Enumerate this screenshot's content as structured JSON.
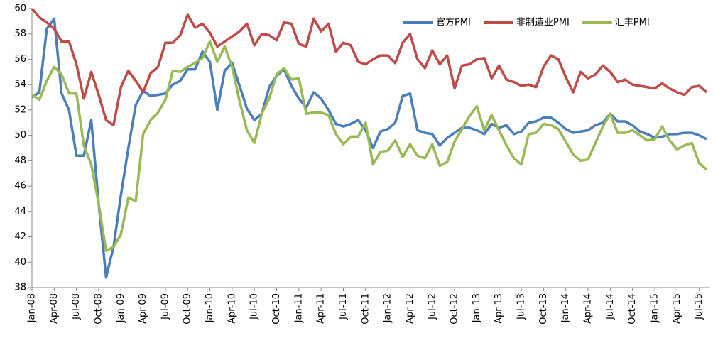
{
  "chart_data": {
    "type": "line",
    "categories": [
      "Jan-08",
      null,
      null,
      "Apr-08",
      null,
      null,
      "Jul-08",
      null,
      null,
      "Oct-08",
      null,
      null,
      "Jan-09",
      null,
      null,
      "Apr-09",
      null,
      null,
      "Jul-09",
      null,
      null,
      "Oct-09",
      null,
      null,
      "Jan-10",
      null,
      null,
      "Apr-10",
      null,
      null,
      "Jul-10",
      null,
      null,
      "Oct-10",
      null,
      null,
      "Jan-11",
      null,
      null,
      "Apr-11",
      null,
      null,
      "Jul-11",
      null,
      null,
      "Oct-11",
      null,
      null,
      "Jan-12",
      null,
      null,
      "Apr-12",
      null,
      null,
      "Jul-12",
      null,
      null,
      "Oct-12",
      null,
      null,
      "Jan-13",
      null,
      null,
      "Apr-13",
      null,
      null,
      "Jul-13",
      null,
      null,
      "Oct-13",
      null,
      null,
      "Jan-14",
      null,
      null,
      "Apr-14",
      null,
      null,
      "Jul-14",
      null,
      null,
      "Oct-14",
      null,
      null,
      "Jan-15",
      null,
      null,
      "Apr-15",
      null,
      null,
      "Jul-15",
      null
    ],
    "series": [
      {
        "name": "官方PMI",
        "color": "#4a7ebb",
        "values": [
          53.0,
          53.4,
          58.4,
          59.2,
          53.3,
          52.0,
          48.4,
          48.4,
          51.2,
          44.6,
          38.8,
          41.2,
          45.3,
          49.0,
          52.4,
          53.5,
          53.1,
          53.2,
          53.3,
          54.0,
          54.3,
          55.2,
          55.2,
          56.6,
          55.8,
          52.0,
          55.1,
          55.7,
          53.9,
          52.1,
          51.2,
          51.7,
          53.8,
          54.7,
          55.2,
          53.9,
          52.9,
          52.2,
          53.4,
          52.9,
          52.0,
          50.9,
          50.7,
          50.9,
          51.2,
          50.4,
          49.0,
          50.3,
          50.5,
          51.0,
          53.1,
          53.3,
          50.4,
          50.2,
          50.1,
          49.2,
          49.8,
          50.2,
          50.6,
          50.6,
          50.4,
          50.1,
          50.9,
          50.6,
          50.8,
          50.1,
          50.3,
          51.0,
          51.1,
          51.4,
          51.4,
          51.0,
          50.5,
          50.2,
          50.3,
          50.4,
          50.8,
          51.0,
          51.7,
          51.1,
          51.1,
          50.8,
          50.3,
          50.1,
          49.8,
          49.9,
          50.1,
          50.1,
          50.2,
          50.2,
          50.0,
          49.7
        ]
      },
      {
        "name": "非制造业PMI",
        "color": "#be4b48",
        "values": [
          60.0,
          59.3,
          58.9,
          58.4,
          57.4,
          57.4,
          55.6,
          52.9,
          55.0,
          53.2,
          51.2,
          50.8,
          53.8,
          55.1,
          54.3,
          53.4,
          54.9,
          55.4,
          57.3,
          57.3,
          57.9,
          59.5,
          58.5,
          58.8,
          58.1,
          57.0,
          57.4,
          57.8,
          58.2,
          58.8,
          57.1,
          58.0,
          57.9,
          57.5,
          58.9,
          58.8,
          57.2,
          57.0,
          59.2,
          58.2,
          58.8,
          56.6,
          57.3,
          57.1,
          55.8,
          55.6,
          56.0,
          56.3,
          56.3,
          55.7,
          57.3,
          58.0,
          56.0,
          55.3,
          56.7,
          55.6,
          56.3,
          53.7,
          55.5,
          55.6,
          56.0,
          56.1,
          54.5,
          55.5,
          54.4,
          54.2,
          53.9,
          54.0,
          53.8,
          55.4,
          56.3,
          56.0,
          54.6,
          53.4,
          55.0,
          54.5,
          54.8,
          55.5,
          55.0,
          54.2,
          54.4,
          54.0,
          53.9,
          53.8,
          53.7,
          54.1,
          53.7,
          53.4,
          53.2,
          53.8,
          53.9,
          53.4
        ]
      },
      {
        "name": "汇丰PMI",
        "color": "#98b954",
        "values": [
          53.2,
          52.8,
          54.3,
          55.4,
          54.8,
          53.3,
          53.3,
          49.2,
          47.7,
          44.6,
          40.9,
          41.2,
          42.2,
          45.1,
          44.8,
          50.1,
          51.2,
          51.8,
          52.8,
          55.1,
          55.0,
          55.4,
          55.7,
          56.1,
          57.4,
          55.8,
          57.0,
          55.4,
          52.7,
          50.4,
          49.4,
          51.7,
          52.9,
          54.8,
          55.3,
          54.4,
          54.5,
          51.7,
          51.8,
          51.8,
          51.6,
          50.1,
          49.3,
          49.9,
          49.9,
          51.0,
          47.7,
          48.7,
          48.8,
          49.6,
          48.3,
          49.3,
          48.4,
          48.2,
          49.3,
          47.6,
          47.9,
          49.5,
          50.5,
          51.5,
          52.3,
          50.4,
          51.6,
          50.4,
          49.2,
          48.2,
          47.7,
          50.1,
          50.2,
          50.9,
          50.8,
          50.5,
          49.5,
          48.5,
          48.0,
          48.1,
          49.4,
          50.7,
          51.7,
          50.2,
          50.2,
          50.4,
          50.0,
          49.6,
          49.7,
          50.7,
          49.6,
          48.9,
          49.2,
          49.4,
          47.8,
          47.3
        ]
      }
    ],
    "ylim": [
      38,
      60
    ],
    "yticks": [
      38,
      40,
      42,
      44,
      46,
      48,
      50,
      52,
      54,
      56,
      58,
      60
    ],
    "grid": false,
    "legend": "top-right"
  }
}
